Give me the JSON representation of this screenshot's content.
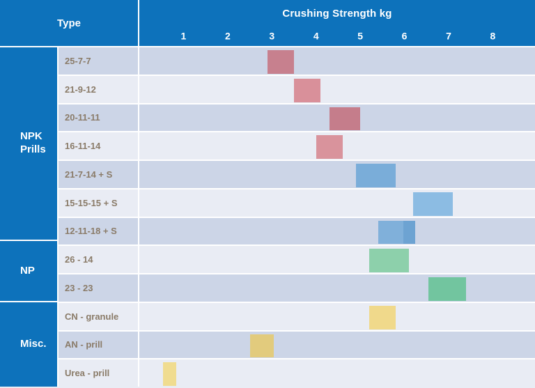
{
  "header": {
    "type_label": "Type",
    "axis_title": "Crushing Strength kg",
    "ticks": [
      "1",
      "2",
      "3",
      "4",
      "5",
      "6",
      "7",
      "8"
    ]
  },
  "groups": [
    {
      "label": "NPK Prills",
      "row_span": 7
    },
    {
      "label": "NP",
      "row_span": 2
    },
    {
      "label": "Misc.",
      "row_span": 3
    }
  ],
  "colors": {
    "header_bg": "#0d72bb",
    "group_bg": "#0d72bb",
    "row_dark": "#ccd5e7",
    "row_light": "#e9ecf4",
    "grid_line": "#ffffff",
    "row_label_text": "#8a7b68",
    "header_text": "#ffffff",
    "red_dark": "#c7808e",
    "red_light": "#d9909a",
    "blue_dark": "#7aadd9",
    "blue_light": "#8cbce3",
    "green_dark": "#72c59f",
    "green_light": "#8dd0ab",
    "yellow_dark": "#e2cb7d",
    "yellow_light": "#f0d98b"
  },
  "chart_data": {
    "type": "bar",
    "variant": "horizontal-floating-range",
    "title": "Crushing Strength kg",
    "x_axis": {
      "label": "Crushing Strength kg",
      "unit": "kg",
      "ticks": [
        1,
        2,
        3,
        4,
        5,
        6,
        7,
        8
      ],
      "min": 0,
      "max": 8.96,
      "gridlines": true
    },
    "y_axis_label": "Type",
    "rows": [
      {
        "group": "NPK Prills",
        "label": "25-7-7",
        "bars": [
          {
            "from": 2.9,
            "to": 3.5,
            "color": "#c7808e"
          }
        ]
      },
      {
        "group": "NPK Prills",
        "label": "21-9-12",
        "bars": [
          {
            "from": 3.5,
            "to": 4.1,
            "color": "#d9909a"
          }
        ]
      },
      {
        "group": "NPK Prills",
        "label": "20-11-11",
        "bars": [
          {
            "from": 4.3,
            "to": 5.0,
            "color": "#c57d8b"
          }
        ]
      },
      {
        "group": "NPK Prills",
        "label": "16-11-14",
        "bars": [
          {
            "from": 4.0,
            "to": 4.6,
            "color": "#d9939c"
          }
        ]
      },
      {
        "group": "NPK Prills",
        "label": "21-7-14 + S",
        "bars": [
          {
            "from": 4.9,
            "to": 5.8,
            "color": "#7aadd9"
          }
        ]
      },
      {
        "group": "NPK Prills",
        "label": "15-15-15 + S",
        "bars": [
          {
            "from": 6.2,
            "to": 7.1,
            "color": "#8cbce3"
          }
        ]
      },
      {
        "group": "NPK Prills",
        "label": "12-11-18 + S",
        "bars": [
          {
            "from": 5.4,
            "to": 5.97,
            "color": "#80b0da"
          },
          {
            "from": 5.97,
            "to": 6.25,
            "color": "#6da3d2"
          }
        ]
      },
      {
        "group": "NP",
        "label": "26 - 14",
        "bars": [
          {
            "from": 5.2,
            "to": 6.1,
            "color": "#8dd0ab"
          }
        ]
      },
      {
        "group": "NP",
        "label": "23 - 23",
        "bars": [
          {
            "from": 6.55,
            "to": 7.4,
            "color": "#72c59f"
          }
        ]
      },
      {
        "group": "Misc.",
        "label": "CN - granule",
        "bars": [
          {
            "from": 5.2,
            "to": 5.8,
            "color": "#f0d98b"
          }
        ]
      },
      {
        "group": "Misc.",
        "label": "AN - prill",
        "bars": [
          {
            "from": 2.5,
            "to": 3.05,
            "color": "#e2cb7d"
          }
        ]
      },
      {
        "group": "Misc.",
        "label": "Urea - prill",
        "bars": [
          {
            "from": 0.54,
            "to": 0.83,
            "color": "#f0dc90"
          }
        ]
      }
    ]
  }
}
